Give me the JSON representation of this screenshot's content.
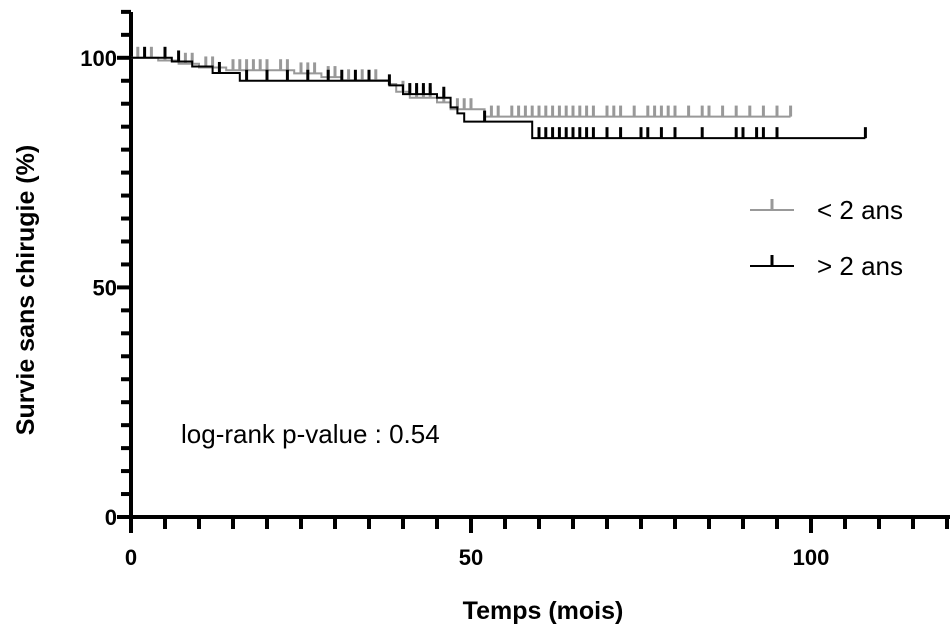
{
  "chart_data": {
    "type": "line",
    "xlabel": "Temps (mois)",
    "ylabel": "Survie sans chirugie (%)",
    "xlim": [
      0,
      120
    ],
    "ylim": [
      0,
      110
    ],
    "x_ticks": [
      0,
      50,
      100
    ],
    "x_tick_labels": [
      "0",
      "50",
      "100"
    ],
    "y_ticks": [
      0,
      50,
      100
    ],
    "y_tick_labels": [
      "0",
      "50",
      "100"
    ],
    "x_minor_step": 5,
    "y_minor_step": 5,
    "grid": false,
    "legend_position": "right",
    "annotation": "log-rank p-value : 0.54",
    "series": [
      {
        "name": "< 2 ans",
        "color": "#999999",
        "steps": [
          [
            0,
            100
          ],
          [
            4,
            99.4
          ],
          [
            7,
            98.7
          ],
          [
            10,
            97.9
          ],
          [
            14,
            97.3
          ],
          [
            24,
            96.6
          ],
          [
            28,
            95.8
          ],
          [
            31,
            95.1
          ],
          [
            38,
            94.3
          ],
          [
            39,
            92.6
          ],
          [
            41,
            91.3
          ],
          [
            45,
            90.3
          ],
          [
            47,
            88.8
          ],
          [
            52,
            87.2
          ],
          [
            97,
            87.2
          ]
        ],
        "censor": [
          1,
          3,
          5,
          8,
          9,
          11,
          12,
          15,
          16,
          17,
          18,
          19,
          20,
          22,
          23,
          25,
          26,
          27,
          29,
          30,
          32,
          34,
          36,
          40,
          42,
          43,
          44,
          46,
          48,
          49,
          50,
          53,
          54,
          56,
          57,
          58,
          59,
          60,
          61,
          62,
          63,
          64,
          65,
          66,
          67,
          68,
          70,
          71,
          72,
          74,
          76,
          77,
          78,
          79,
          80,
          82,
          84,
          85,
          87,
          89,
          91,
          93,
          95,
          97
        ]
      },
      {
        "name": "> 2 ans",
        "color": "#000000",
        "steps": [
          [
            0,
            100
          ],
          [
            6,
            99.2
          ],
          [
            9,
            98.1
          ],
          [
            12,
            96.7
          ],
          [
            16,
            95.0
          ],
          [
            38,
            94.0
          ],
          [
            40,
            92.1
          ],
          [
            45,
            91.3
          ],
          [
            47,
            89.2
          ],
          [
            48,
            87.9
          ],
          [
            49,
            86.1
          ],
          [
            59,
            82.5
          ],
          [
            108,
            82.5
          ]
        ],
        "censor": [
          2,
          5,
          7,
          13,
          17,
          20,
          23,
          26,
          29,
          31,
          33,
          35,
          38,
          41,
          42,
          43,
          44,
          46,
          52,
          60,
          61,
          62,
          63,
          64,
          65,
          66,
          67,
          68,
          70,
          72,
          75,
          76,
          78,
          80,
          84,
          89,
          90,
          92,
          93,
          95,
          108
        ]
      }
    ]
  }
}
